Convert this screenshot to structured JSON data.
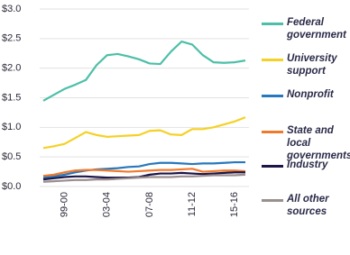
{
  "chart_data": {
    "type": "line",
    "categories": [
      null,
      null,
      "99-00",
      null,
      null,
      null,
      "03-04",
      null,
      null,
      null,
      "07-08",
      null,
      null,
      null,
      "11-12",
      null,
      null,
      null,
      "15-16",
      null
    ],
    "series": [
      {
        "name": "Federal government",
        "color": "#4dbfa8",
        "values": [
          1.45,
          1.55,
          1.65,
          1.72,
          1.8,
          2.05,
          2.22,
          2.24,
          2.2,
          2.15,
          2.08,
          2.07,
          2.28,
          2.45,
          2.4,
          2.22,
          2.1,
          2.09,
          2.1,
          2.13
        ]
      },
      {
        "name": "University support",
        "color": "#f5d125",
        "values": [
          0.65,
          0.68,
          0.72,
          0.82,
          0.92,
          0.87,
          0.84,
          0.85,
          0.86,
          0.87,
          0.94,
          0.95,
          0.88,
          0.87,
          0.97,
          0.97,
          1.0,
          1.05,
          1.1,
          1.17
        ]
      },
      {
        "name": "Nonprofit",
        "color": "#2878bd",
        "values": [
          0.15,
          0.17,
          0.2,
          0.24,
          0.27,
          0.29,
          0.3,
          0.31,
          0.33,
          0.34,
          0.38,
          0.4,
          0.4,
          0.39,
          0.38,
          0.39,
          0.39,
          0.4,
          0.41,
          0.41
        ]
      },
      {
        "name": "State and local governments",
        "color": "#f07a2c",
        "values": [
          0.18,
          0.2,
          0.24,
          0.27,
          0.28,
          0.28,
          0.27,
          0.26,
          0.25,
          0.26,
          0.27,
          0.28,
          0.28,
          0.29,
          0.3,
          0.25,
          0.26,
          0.27,
          0.27,
          0.26
        ]
      },
      {
        "name": "Industry",
        "color": "#1b1548",
        "values": [
          0.12,
          0.14,
          0.16,
          0.17,
          0.17,
          0.16,
          0.15,
          0.15,
          0.15,
          0.16,
          0.2,
          0.22,
          0.22,
          0.23,
          0.22,
          0.21,
          0.22,
          0.23,
          0.24,
          0.24
        ]
      },
      {
        "name": "All other sources",
        "color": "#9a8e8e",
        "values": [
          0.08,
          0.09,
          0.1,
          0.11,
          0.11,
          0.12,
          0.12,
          0.13,
          0.14,
          0.15,
          0.16,
          0.16,
          0.16,
          0.17,
          0.17,
          0.18,
          0.19,
          0.19,
          0.19,
          0.2
        ]
      }
    ],
    "ylim": [
      0,
      3
    ],
    "yticks": [
      {
        "value": 0,
        "label": "$0.0"
      },
      {
        "value": 0.5,
        "label": "$0.5"
      },
      {
        "value": 1,
        "label": "$1.0"
      },
      {
        "value": 1.5,
        "label": "$1.5"
      },
      {
        "value": 2,
        "label": "$2.0"
      },
      {
        "value": 2.5,
        "label": "$2.5"
      },
      {
        "value": 3,
        "label": "$3.0"
      }
    ],
    "grid": true
  }
}
